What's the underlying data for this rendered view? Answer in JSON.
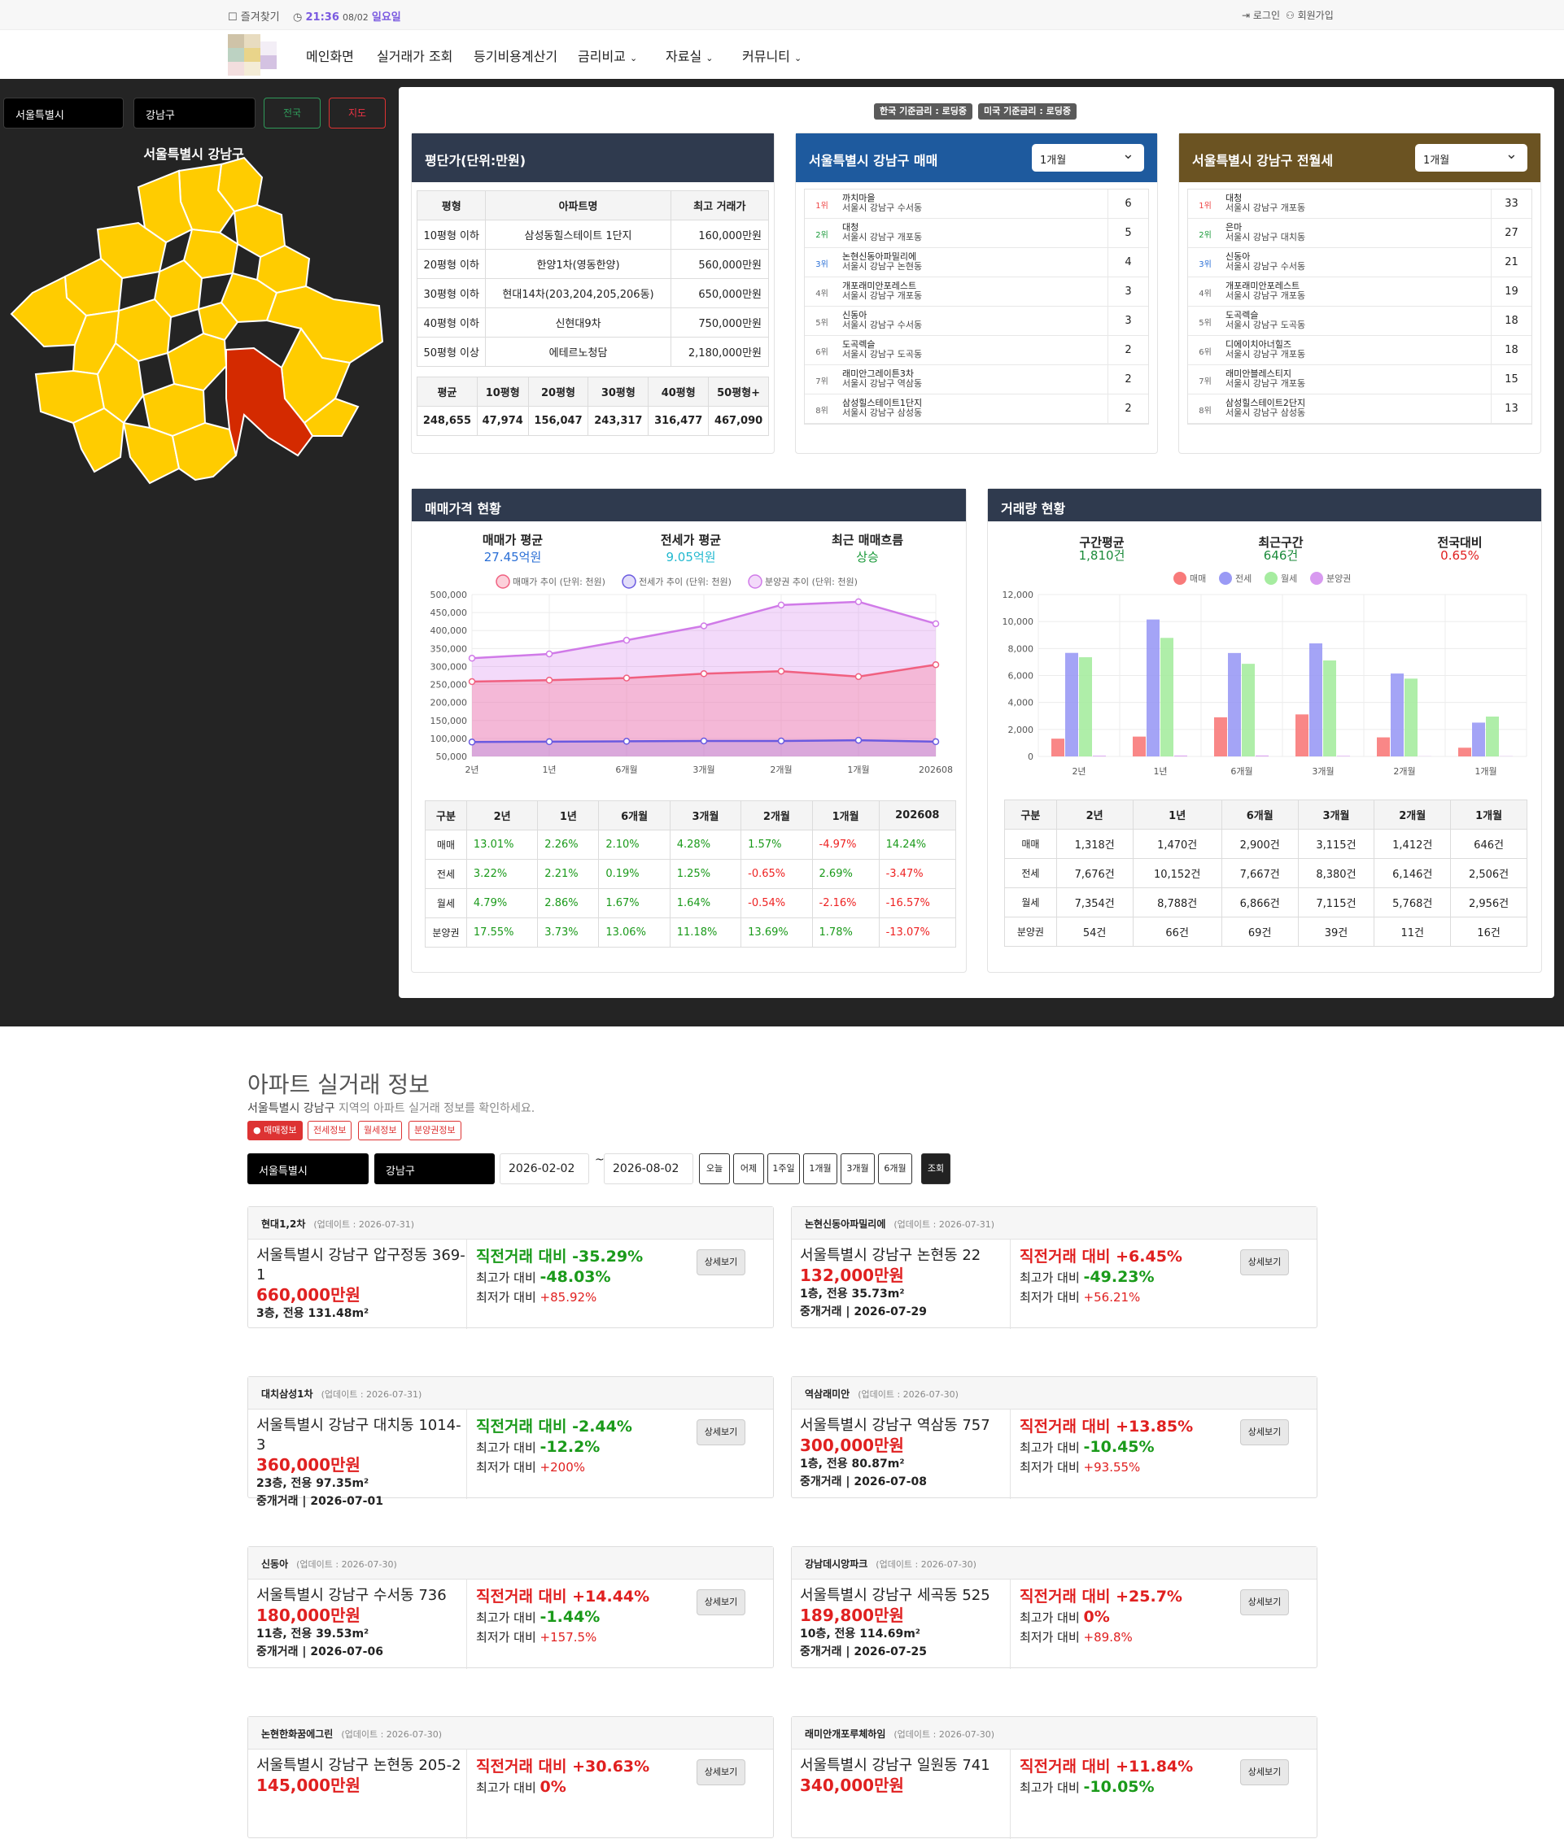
{
  "topbar": {
    "bookmark": "즐겨찾기",
    "time": "21:36",
    "date": "08/02",
    "weekday": "일요일",
    "login": "로그인",
    "signup": "회원가입"
  },
  "nav": [
    "메인화면",
    "실거래가 조회",
    "등기비용계산기",
    "금리비교",
    "자료실",
    "커뮤니티"
  ],
  "map": {
    "city": "서울특별시",
    "district": "강남구",
    "btn_nation": "전국",
    "btn_map": "지도",
    "title": "서울특별시 강남구"
  },
  "rates": [
    "한국 기준금리 : 로딩중",
    "미국 기준금리 : 로딩중"
  ],
  "pyeong": {
    "title": "평단가(단위:만원)",
    "headers": [
      "평형",
      "아파트명",
      "최고 거래가"
    ],
    "rows": [
      [
        "10평형 이하",
        "삼성동힐스테이트 1단지",
        "160,000만원"
      ],
      [
        "20평형 이하",
        "한양1차(영동한양)",
        "560,000만원"
      ],
      [
        "30평형 이하",
        "현대14차(203,204,205,206동)",
        "650,000만원"
      ],
      [
        "40평형 이하",
        "신현대9차",
        "750,000만원"
      ],
      [
        "50평형 이상",
        "에테르노청담",
        "2,180,000만원"
      ]
    ],
    "avg_headers": [
      "평균",
      "10평형",
      "20평형",
      "30평형",
      "40평형",
      "50평형+"
    ],
    "avg_values": [
      "248,655",
      "47,974",
      "156,047",
      "243,317",
      "316,477",
      "467,090"
    ]
  },
  "sale_rank": {
    "title": "서울특별시 강남구 매매",
    "period": "1개월",
    "items": [
      {
        "rank": "1위",
        "name": "까치마을",
        "addr": "서울시 강남구 수서동",
        "count": "6"
      },
      {
        "rank": "2위",
        "name": "대청",
        "addr": "서울시 강남구 개포동",
        "count": "5"
      },
      {
        "rank": "3위",
        "name": "논현신동아파밀리에",
        "addr": "서울시 강남구 논현동",
        "count": "4"
      },
      {
        "rank": "4위",
        "name": "개포래미안포레스트",
        "addr": "서울시 강남구 개포동",
        "count": "3"
      },
      {
        "rank": "5위",
        "name": "신동아",
        "addr": "서울시 강남구 수서동",
        "count": "3"
      },
      {
        "rank": "6위",
        "name": "도곡렉슬",
        "addr": "서울시 강남구 도곡동",
        "count": "2"
      },
      {
        "rank": "7위",
        "name": "래미안그레이튼3차",
        "addr": "서울시 강남구 역삼동",
        "count": "2"
      },
      {
        "rank": "8위",
        "name": "삼성힐스테이트1단지",
        "addr": "서울시 강남구 삼성동",
        "count": "2"
      }
    ]
  },
  "rent_rank": {
    "title": "서울특별시 강남구 전월세",
    "period": "1개월",
    "items": [
      {
        "rank": "1위",
        "name": "대청",
        "addr": "서울시 강남구 개포동",
        "count": "33"
      },
      {
        "rank": "2위",
        "name": "은마",
        "addr": "서울시 강남구 대치동",
        "count": "27"
      },
      {
        "rank": "3위",
        "name": "신동아",
        "addr": "서울시 강남구 수서동",
        "count": "21"
      },
      {
        "rank": "4위",
        "name": "개포래미안포레스트",
        "addr": "서울시 강남구 개포동",
        "count": "19"
      },
      {
        "rank": "5위",
        "name": "도곡렉슬",
        "addr": "서울시 강남구 도곡동",
        "count": "18"
      },
      {
        "rank": "6위",
        "name": "디에이치아너힐즈",
        "addr": "서울시 강남구 개포동",
        "count": "18"
      },
      {
        "rank": "7위",
        "name": "래미안블레스티지",
        "addr": "서울시 강남구 개포동",
        "count": "15"
      },
      {
        "rank": "8위",
        "name": "삼성힐스테이트2단지",
        "addr": "서울시 강남구 삼성동",
        "count": "13"
      }
    ]
  },
  "price_status": {
    "title": "매매가격 현황",
    "stats": [
      {
        "label": "매매가 평균",
        "value": "27.45억원",
        "color": "#2a6fd6"
      },
      {
        "label": "전세가 평균",
        "value": "9.05억원",
        "color": "#20b8cf"
      },
      {
        "label": "최근 매매흐름",
        "value": "상승",
        "color": "#1a9a3a"
      }
    ],
    "table_headers": [
      "구분",
      "2년",
      "1년",
      "6개월",
      "3개월",
      "2개월",
      "1개월",
      "202608"
    ],
    "table_rows": [
      [
        "매매",
        "13.01%",
        "2.26%",
        "2.10%",
        "4.28%",
        "1.57%",
        "-4.97%",
        "14.24%"
      ],
      [
        "전세",
        "3.22%",
        "2.21%",
        "0.19%",
        "1.25%",
        "-0.65%",
        "2.69%",
        "-3.47%"
      ],
      [
        "월세",
        "4.79%",
        "2.86%",
        "1.67%",
        "1.64%",
        "-0.54%",
        "-2.16%",
        "-16.57%"
      ],
      [
        "분양권",
        "17.55%",
        "3.73%",
        "13.06%",
        "11.18%",
        "13.69%",
        "1.78%",
        "-13.07%"
      ]
    ]
  },
  "volume_status": {
    "title": "거래량 현황",
    "stats": [
      {
        "label": "구간평균",
        "value": "1,810건",
        "color": "#1a8a3a"
      },
      {
        "label": "최근구간",
        "value": "646건",
        "color": "#1a8a3a"
      },
      {
        "label": "전국대비",
        "value": "0.65%",
        "color": "#e02020"
      }
    ],
    "table_headers": [
      "구분",
      "2년",
      "1년",
      "6개월",
      "3개월",
      "2개월",
      "1개월"
    ],
    "table_rows": [
      [
        "매매",
        "1,318건",
        "1,470건",
        "2,900건",
        "3,115건",
        "1,412건",
        "646건"
      ],
      [
        "전세",
        "7,676건",
        "10,152건",
        "7,667건",
        "8,380건",
        "6,146건",
        "2,506건"
      ],
      [
        "월세",
        "7,354건",
        "8,788건",
        "6,866건",
        "7,115건",
        "5,768건",
        "2,956건"
      ],
      [
        "분양권",
        "54건",
        "66건",
        "69건",
        "39건",
        "11건",
        "16건"
      ]
    ]
  },
  "chart_data": [
    {
      "type": "line",
      "x": [
        "2년",
        "1년",
        "6개월",
        "3개월",
        "2개월",
        "1개월",
        "202608"
      ],
      "ylim": [
        50000,
        500000
      ],
      "yticks": [
        "500,000",
        "450,000",
        "400,000",
        "350,000",
        "300,000",
        "250,000",
        "200,000",
        "150,000",
        "100,000",
        "50,000"
      ],
      "series": [
        {
          "name": "매매가 추이 (단위: 천원)",
          "color": "#f06080",
          "fill": "rgba(245,120,150,0.35)",
          "values": [
            258000,
            262000,
            268000,
            280000,
            287000,
            272000,
            305000
          ]
        },
        {
          "name": "전세가 추이 (단위: 천원)",
          "color": "#6a5ae0",
          "fill": "rgba(140,120,230,0.25)",
          "values": [
            90000,
            91000,
            92000,
            93000,
            93000,
            95000,
            91000
          ]
        },
        {
          "name": "분양권 추이 (단위: 천원)",
          "color": "#d07ae8",
          "fill": "rgba(220,150,240,0.35)",
          "values": [
            323000,
            335000,
            373000,
            413000,
            471000,
            480000,
            419000
          ]
        }
      ],
      "grid": true,
      "legend": "top"
    },
    {
      "type": "bar",
      "categories": [
        "2년",
        "1년",
        "6개월",
        "3개월",
        "2개월",
        "1개월"
      ],
      "ylim": [
        0,
        12000
      ],
      "yticks": [
        "12,000",
        "10,000",
        "8,000",
        "6,000",
        "4,000",
        "2,000",
        "0"
      ],
      "series": [
        {
          "name": "매매",
          "color": "#f87a7a",
          "values": [
            1318,
            1470,
            2900,
            3115,
            1412,
            646
          ]
        },
        {
          "name": "전세",
          "color": "#9a9af5",
          "values": [
            7676,
            10152,
            7667,
            8380,
            6146,
            2506
          ]
        },
        {
          "name": "월세",
          "color": "#a6eca0",
          "values": [
            7354,
            8788,
            6866,
            7115,
            5768,
            2956
          ]
        },
        {
          "name": "분양권",
          "color": "#d89af0",
          "values": [
            54,
            66,
            69,
            39,
            11,
            16
          ]
        }
      ],
      "grid": true,
      "legend": "top"
    }
  ],
  "listing": {
    "title": "아파트 실거래 정보",
    "subtitle_region": "서울특별시 강남구",
    "subtitle_rest": " 지역의 아파트 실거래 정보를 확인하세요.",
    "tags": [
      "매매정보",
      "전세정보",
      "월세정보",
      "분양권정보"
    ],
    "city": "서울특별시",
    "district": "강남구",
    "date_from": "2026-02-02",
    "tilde": "~",
    "date_to": "2026-08-02",
    "quick": [
      "오늘",
      "어제",
      "1주일",
      "1개월",
      "3개월",
      "6개월",
      "조회"
    ],
    "detail_label": "상세보기",
    "deals": [
      {
        "name": "현대1,2차",
        "updated": "(업데이트 : 2026-07-31)",
        "addr": "서울특별시 강남구 압구정동 369-1",
        "price": "660,000만원",
        "floor": "3층, 전용 131.48m²",
        "broker": "",
        "chg": "직전거래 대비 -35.29%",
        "chg_color": "#1a9a1a",
        "hi_label": "최고가 대비 ",
        "hi": "-48.03%",
        "hi_color": "#1a9a1a",
        "lo_label": "최저가 대비 ",
        "lo": "+85.92%",
        "lo_color": "#e02020"
      },
      {
        "name": "논현신동아파밀리에",
        "updated": "(업데이트 : 2026-07-31)",
        "addr": "서울특별시 강남구 논현동 22",
        "price": "132,000만원",
        "floor": "1층, 전용 35.73m²",
        "broker": "중개거래 | 2026-07-29",
        "chg": "직전거래 대비 +6.45%",
        "chg_color": "#e02020",
        "hi_label": "최고가 대비 ",
        "hi": "-49.23%",
        "hi_color": "#1a9a1a",
        "lo_label": "최저가 대비 ",
        "lo": "+56.21%",
        "lo_color": "#e02020"
      },
      {
        "name": "대치삼성1차",
        "updated": "(업데이트 : 2026-07-31)",
        "addr": "서울특별시 강남구 대치동 1014-3",
        "price": "360,000만원",
        "floor": "23층, 전용 97.35m²",
        "broker": "중개거래 | 2026-07-01",
        "chg": "직전거래 대비 -2.44%",
        "chg_color": "#1a9a1a",
        "hi_label": "최고가 대비 ",
        "hi": "-12.2%",
        "hi_color": "#1a9a1a",
        "lo_label": "최저가 대비 ",
        "lo": "+200%",
        "lo_color": "#e02020"
      },
      {
        "name": "역삼래미안",
        "updated": "(업데이트 : 2026-07-30)",
        "addr": "서울특별시 강남구 역삼동 757",
        "price": "300,000만원",
        "floor": "1층, 전용 80.87m²",
        "broker": "중개거래 | 2026-07-08",
        "chg": "직전거래 대비 +13.85%",
        "chg_color": "#e02020",
        "hi_label": "최고가 대비 ",
        "hi": "-10.45%",
        "hi_color": "#1a9a1a",
        "lo_label": "최저가 대비 ",
        "lo": "+93.55%",
        "lo_color": "#e02020"
      },
      {
        "name": "신동아",
        "updated": "(업데이트 : 2026-07-30)",
        "addr": "서울특별시 강남구 수서동 736",
        "price": "180,000만원",
        "floor": "11층, 전용 39.53m²",
        "broker": "중개거래 | 2026-07-06",
        "chg": "직전거래 대비 +14.44%",
        "chg_color": "#e02020",
        "hi_label": "최고가 대비 ",
        "hi": "-1.44%",
        "hi_color": "#1a9a1a",
        "lo_label": "최저가 대비 ",
        "lo": "+157.5%",
        "lo_color": "#e02020"
      },
      {
        "name": "강남데시앙파크",
        "updated": "(업데이트 : 2026-07-30)",
        "addr": "서울특별시 강남구 세곡동 525",
        "price": "189,800만원",
        "floor": "10층, 전용 114.69m²",
        "broker": "중개거래 | 2026-07-25",
        "chg": "직전거래 대비 +25.7%",
        "chg_color": "#e02020",
        "hi_label": "최고가 대비 ",
        "hi": "0%",
        "hi_color": "#e02020",
        "lo_label": "최저가 대비 ",
        "lo": "+89.8%",
        "lo_color": "#e02020"
      },
      {
        "name": "논현한화꿈에그린",
        "updated": "(업데이트 : 2026-07-30)",
        "addr": "서울특별시 강남구 논현동 205-2",
        "price": "145,000만원",
        "floor": "",
        "broker": "",
        "chg": "직전거래 대비 +30.63%",
        "chg_color": "#e02020",
        "hi_label": "최고가 대비 ",
        "hi": "0%",
        "hi_color": "#e02020",
        "lo_label": "",
        "lo": "",
        "lo_color": "#e02020"
      },
      {
        "name": "래미안개포루체하임",
        "updated": "(업데이트 : 2026-07-30)",
        "addr": "서울특별시 강남구 일원동 741",
        "price": "340,000만원",
        "floor": "",
        "broker": "",
        "chg": "직전거래 대비 +11.84%",
        "chg_color": "#e02020",
        "hi_label": "최고가 대비 ",
        "hi": "-10.05%",
        "hi_color": "#1a9a1a",
        "lo_label": "",
        "lo": "",
        "lo_color": "#e02020"
      }
    ]
  }
}
